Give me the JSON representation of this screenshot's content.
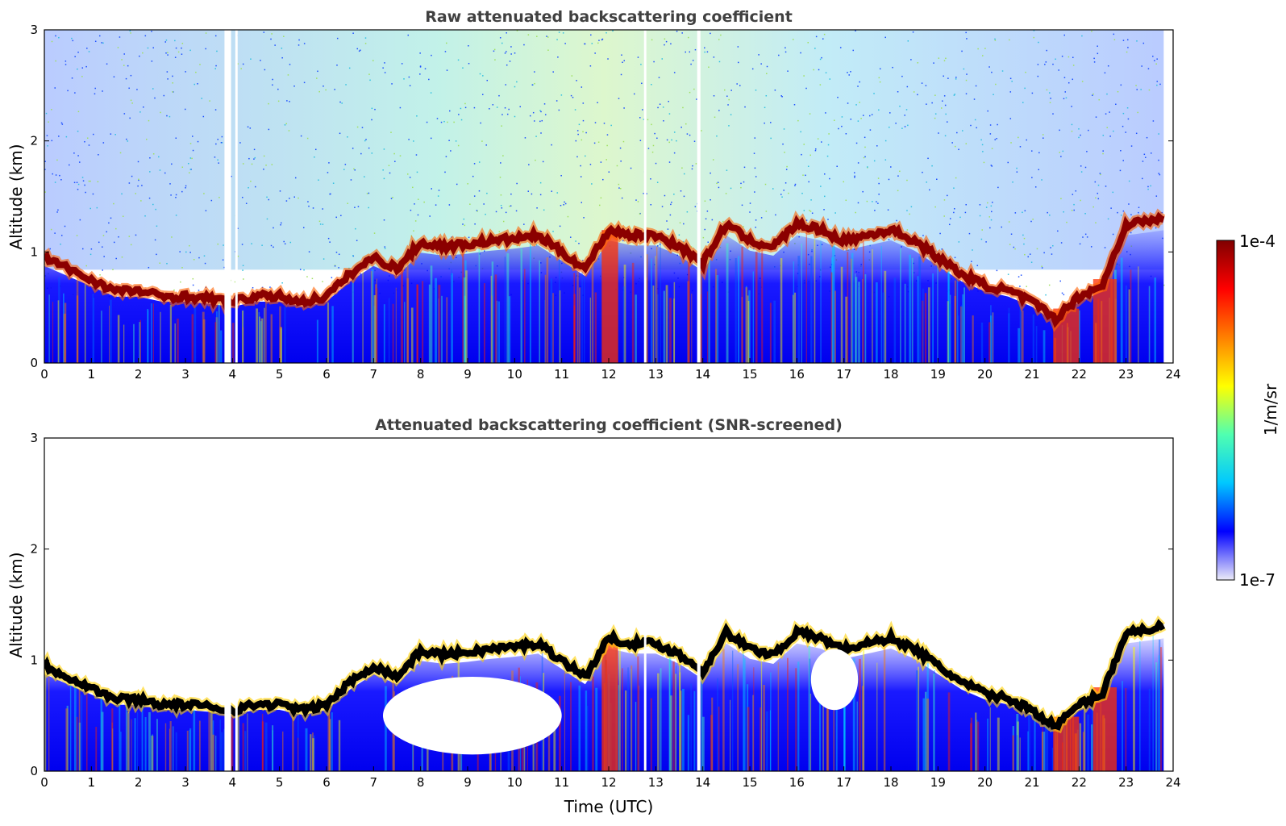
{
  "chart_data": [
    {
      "type": "heatmap",
      "title": "Raw attenuated backscattering coefficient",
      "xlabel": "",
      "ylabel": "Altitude (km)",
      "xlim": [
        0,
        24
      ],
      "ylim": [
        0,
        3
      ],
      "xticks": [
        "0",
        "1",
        "2",
        "3",
        "4",
        "5",
        "6",
        "7",
        "8",
        "9",
        "10",
        "11",
        "12",
        "13",
        "14",
        "15",
        "16",
        "17",
        "18",
        "19",
        "20",
        "21",
        "22",
        "23",
        "24"
      ],
      "yticks": [
        "0",
        "1",
        "2",
        "3"
      ],
      "data_end_hour": 23.8,
      "gaps_hours": [
        [
          3.83,
          3.97
        ],
        [
          4.06,
          4.11
        ],
        [
          12.75,
          12.8
        ],
        [
          13.88,
          13.95
        ]
      ],
      "boundary_layer_top_km": {
        "x": [
          0,
          0.5,
          1,
          1.5,
          2,
          2.5,
          3,
          3.5,
          4,
          4.5,
          5,
          5.5,
          6,
          6.5,
          7,
          7.5,
          8,
          8.5,
          9,
          9.5,
          10,
          10.5,
          11,
          11.5,
          12,
          12.5,
          13,
          13.5,
          14,
          14.5,
          15,
          15.5,
          16,
          16.5,
          17,
          17.5,
          18,
          18.5,
          19,
          19.5,
          20,
          20.5,
          21,
          21.5,
          22,
          22.5,
          23,
          23.5,
          23.8
        ],
        "y": [
          0.95,
          0.85,
          0.75,
          0.65,
          0.65,
          0.6,
          0.6,
          0.58,
          0.55,
          0.6,
          0.6,
          0.55,
          0.6,
          0.8,
          0.95,
          0.85,
          1.08,
          1.05,
          1.07,
          1.1,
          1.12,
          1.15,
          1.0,
          0.85,
          1.2,
          1.15,
          1.15,
          1.05,
          0.9,
          1.25,
          1.1,
          1.05,
          1.25,
          1.2,
          1.1,
          1.15,
          1.2,
          1.1,
          0.95,
          0.8,
          0.7,
          0.65,
          0.55,
          0.4,
          0.6,
          0.7,
          1.25,
          1.28,
          1.3
        ]
      }
    },
    {
      "type": "heatmap",
      "title": "Attenuated backscattering coefficient (SNR-screened)",
      "xlabel": "Time (UTC)",
      "ylabel": "Altitude (km)",
      "xlim": [
        0,
        24
      ],
      "ylim": [
        0,
        3
      ],
      "xticks": [
        "0",
        "1",
        "2",
        "3",
        "4",
        "5",
        "6",
        "7",
        "8",
        "9",
        "10",
        "11",
        "12",
        "13",
        "14",
        "15",
        "16",
        "17",
        "18",
        "19",
        "20",
        "21",
        "22",
        "23",
        "24"
      ],
      "yticks": [
        "0",
        "1",
        "2",
        "3"
      ]
    }
  ],
  "colorbar": {
    "label": "1/m/sr",
    "max_label": "1e-4",
    "min_label": "1e-7",
    "colormap": "jet",
    "stops": [
      "#ecebf8",
      "#0000ff",
      "#00c8ff",
      "#50ffb0",
      "#ffff00",
      "#ff8000",
      "#ff0000",
      "#800000"
    ]
  }
}
